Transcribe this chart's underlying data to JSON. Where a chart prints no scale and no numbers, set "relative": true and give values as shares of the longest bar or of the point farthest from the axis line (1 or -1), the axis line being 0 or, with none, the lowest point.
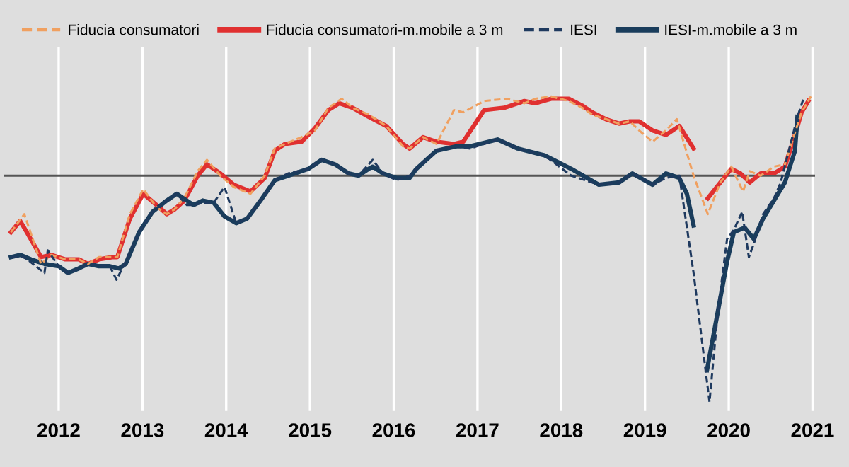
{
  "chart_data": {
    "type": "line",
    "relative": true,
    "legend": "top",
    "grid": "x",
    "xlim": [
      2011.85,
      2021.53
    ],
    "xticks": [
      {
        "value": 2012.5,
        "label": "2012"
      },
      {
        "value": 2013.5,
        "label": "2013"
      },
      {
        "value": 2014.5,
        "label": "2014"
      },
      {
        "value": 2015.5,
        "label": "2015"
      },
      {
        "value": 2016.5,
        "label": "2016"
      },
      {
        "value": 2017.5,
        "label": "2017"
      },
      {
        "value": 2018.5,
        "label": "2018"
      },
      {
        "value": 2019.5,
        "label": "2019"
      },
      {
        "value": 2020.5,
        "label": "2020"
      },
      {
        "value": 2021.5,
        "label": "2021"
      }
    ],
    "ref_lines": [
      {
        "axis": "y",
        "value": 0,
        "color": "#555555"
      }
    ],
    "series": [
      {
        "name": "Fiducia consumatori",
        "color": "#f0a060",
        "line_style": "dashed",
        "x": [
          2011.93,
          2012.09,
          2012.29,
          2012.41,
          2012.58,
          2012.74,
          2012.85,
          2012.98,
          2013.14,
          2013.2,
          2013.35,
          2013.51,
          2013.67,
          2013.79,
          2013.88,
          2014.0,
          2014.16,
          2014.27,
          2014.43,
          2014.59,
          2014.79,
          2014.96,
          2015.08,
          2015.2,
          2015.4,
          2015.56,
          2015.72,
          2015.88,
          2016.01,
          2016.2,
          2016.41,
          2016.61,
          2016.69,
          2016.85,
          2017.01,
          2017.22,
          2017.33,
          2017.58,
          2017.85,
          2018.06,
          2018.19,
          2018.38,
          2018.59,
          2018.75,
          2018.87,
          2019.03,
          2019.19,
          2019.32,
          2019.43,
          2019.59,
          2019.75,
          2019.88,
          2020.08,
          2020.25,
          2020.4,
          2020.53,
          2020.67,
          2020.75,
          2020.88,
          2021.04,
          2021.17,
          2021.29,
          2021.37,
          2021.48
        ],
        "values": [
          -0.25,
          -0.17,
          -0.39,
          -0.35,
          -0.37,
          -0.37,
          -0.39,
          -0.36,
          -0.36,
          -0.36,
          -0.17,
          -0.06,
          -0.14,
          -0.17,
          -0.15,
          -0.1,
          0.02,
          0.07,
          0.0,
          -0.05,
          -0.08,
          0.0,
          0.12,
          0.14,
          0.17,
          0.2,
          0.3,
          0.34,
          0.3,
          0.27,
          0.22,
          0.13,
          0.12,
          0.17,
          0.14,
          0.29,
          0.28,
          0.33,
          0.34,
          0.32,
          0.34,
          0.35,
          0.33,
          0.3,
          0.27,
          0.25,
          0.23,
          0.24,
          0.2,
          0.15,
          0.2,
          0.25,
          0.0,
          -0.17,
          -0.03,
          0.04,
          -0.07,
          0.02,
          0.0,
          0.04,
          0.05,
          0.19,
          0.28,
          0.35
        ]
      },
      {
        "name": "Fiducia consumatori-m.mobile a 3 m",
        "color": "#e03030",
        "line_style": "solid",
        "x": [
          2011.93,
          2012.04,
          2012.12,
          2012.29,
          2012.41,
          2012.58,
          2012.74,
          2012.85,
          2012.98,
          2013.14,
          2013.2,
          2013.35,
          2013.51,
          2013.67,
          2013.79,
          2013.88,
          2014.0,
          2014.16,
          2014.27,
          2014.43,
          2014.59,
          2014.79,
          2014.96,
          2015.08,
          2015.2,
          2015.4,
          2015.56,
          2015.72,
          2015.85,
          2016.01,
          2016.2,
          2016.41,
          2016.61,
          2016.69,
          2016.85,
          2017.01,
          2017.22,
          2017.33,
          2017.58,
          2017.82,
          2018.06,
          2018.19,
          2018.38,
          2018.59,
          2018.75,
          2018.87,
          2019.03,
          2019.19,
          2019.32,
          2019.43,
          2019.59,
          2019.75,
          2019.91,
          2020.08,
          2020.16,
          2020.25,
          2020.4,
          2020.53,
          2020.64,
          2020.75,
          2020.88,
          2021.04,
          2021.17,
          2021.29,
          2021.37,
          2021.45
        ],
        "values": [
          -0.25,
          -0.2,
          -0.25,
          -0.36,
          -0.35,
          -0.37,
          -0.37,
          -0.39,
          -0.37,
          -0.36,
          -0.36,
          -0.19,
          -0.08,
          -0.13,
          -0.17,
          -0.15,
          -0.11,
          0.0,
          0.05,
          0.01,
          -0.04,
          -0.07,
          -0.01,
          0.11,
          0.14,
          0.15,
          0.21,
          0.29,
          0.32,
          0.3,
          0.26,
          0.22,
          0.14,
          0.12,
          0.17,
          0.15,
          0.14,
          0.15,
          0.29,
          0.3,
          0.33,
          0.32,
          0.34,
          0.34,
          0.31,
          0.28,
          0.25,
          0.23,
          0.24,
          0.24,
          0.2,
          0.18,
          0.22,
          0.12,
          null,
          -0.1,
          -0.03,
          0.03,
          0.01,
          -0.03,
          0.01,
          0.01,
          0.04,
          0.18,
          0.28,
          0.33
        ]
      },
      {
        "name": "IESI",
        "color": "#1f3a5f",
        "line_style": "dashed",
        "x": [
          2011.93,
          2012.09,
          2012.33,
          2012.37,
          2012.5,
          2012.61,
          2012.74,
          2012.85,
          2013.11,
          2013.19,
          2013.3,
          2013.46,
          2013.62,
          2013.79,
          2013.91,
          2014.03,
          2014.11,
          2014.22,
          2014.35,
          2014.48,
          2014.62,
          2014.75,
          2014.91,
          2015.08,
          2015.24,
          2015.48,
          2015.64,
          2015.8,
          2015.96,
          2016.08,
          2016.2,
          2016.25,
          2016.37,
          2016.53,
          2016.69,
          2016.77,
          2017.01,
          2017.25,
          2017.41,
          2017.74,
          2017.98,
          2018.3,
          2018.62,
          2018.95,
          2019.19,
          2019.35,
          2019.59,
          2019.75,
          2019.91,
          2020.08,
          2020.27,
          2020.37,
          2020.48,
          2020.56,
          2020.66,
          2020.74,
          2020.8,
          2020.91,
          2021.04,
          2021.12,
          2021.32,
          2021.4
        ],
        "values": [
          -0.36,
          -0.36,
          -0.43,
          -0.33,
          -0.4,
          -0.43,
          -0.41,
          -0.39,
          -0.4,
          -0.46,
          -0.38,
          -0.25,
          -0.16,
          -0.11,
          -0.08,
          -0.13,
          -0.13,
          -0.12,
          -0.12,
          -0.05,
          -0.21,
          -0.19,
          -0.11,
          -0.02,
          0.01,
          0.03,
          0.07,
          0.05,
          0.01,
          0.0,
          0.05,
          0.07,
          0.01,
          -0.02,
          0.0,
          0.03,
          0.11,
          0.13,
          0.12,
          0.16,
          0.12,
          0.09,
          0.0,
          -0.04,
          -0.03,
          0.01,
          -0.04,
          -0.01,
          0.0,
          -0.43,
          -1.0,
          -0.6,
          -0.28,
          -0.24,
          -0.16,
          -0.36,
          -0.3,
          -0.17,
          -0.1,
          -0.03,
          0.26,
          0.35
        ]
      },
      {
        "name": "IESI-m.mobile a 3 m",
        "color": "#1a3d5c",
        "line_style": "solid",
        "x": [
          2011.93,
          2012.04,
          2012.17,
          2012.33,
          2012.5,
          2012.61,
          2012.74,
          2012.85,
          2012.98,
          2013.11,
          2013.22,
          2013.3,
          2013.46,
          2013.62,
          2013.79,
          2013.91,
          2014.03,
          2014.11,
          2014.22,
          2014.35,
          2014.48,
          2014.62,
          2014.75,
          2014.91,
          2015.08,
          2015.24,
          2015.48,
          2015.64,
          2015.8,
          2015.96,
          2016.08,
          2016.2,
          2016.25,
          2016.37,
          2016.53,
          2016.69,
          2016.77,
          2017.01,
          2017.25,
          2017.41,
          2017.74,
          2017.98,
          2018.3,
          2018.62,
          2018.95,
          2019.19,
          2019.35,
          2019.59,
          2019.75,
          2019.91,
          2020.0,
          2020.08,
          2020.16,
          2020.24,
          2020.37,
          2020.48,
          2020.56,
          2020.69,
          2020.8,
          2020.91,
          2021.04,
          2021.17,
          2021.29,
          2021.32
        ],
        "values": [
          -0.36,
          -0.35,
          -0.37,
          -0.39,
          -0.4,
          -0.43,
          -0.41,
          -0.39,
          -0.4,
          -0.4,
          -0.41,
          -0.39,
          -0.25,
          -0.16,
          -0.11,
          -0.08,
          -0.11,
          -0.13,
          -0.11,
          -0.12,
          -0.18,
          -0.21,
          -0.19,
          -0.11,
          -0.02,
          0.0,
          0.03,
          0.07,
          0.05,
          0.01,
          0.0,
          0.03,
          0.04,
          0.01,
          -0.01,
          -0.01,
          0.03,
          0.11,
          0.13,
          0.13,
          0.16,
          0.12,
          0.09,
          0.03,
          -0.04,
          -0.03,
          0.01,
          -0.04,
          0.01,
          -0.01,
          -0.08,
          -0.22,
          null,
          -0.86,
          -0.6,
          -0.38,
          -0.25,
          -0.23,
          -0.28,
          -0.19,
          -0.11,
          -0.03,
          0.11,
          0.26
        ]
      }
    ]
  }
}
